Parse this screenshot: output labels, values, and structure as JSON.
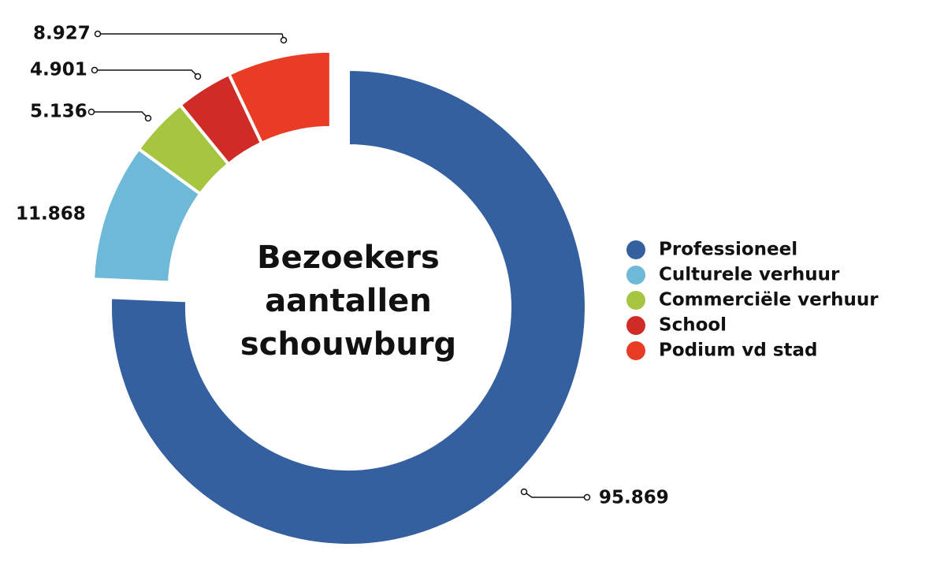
{
  "chart_data": {
    "type": "donut",
    "title": "Bezoekers aantallen schouwburg",
    "categories": [
      "Professioneel",
      "Culturele verhuur",
      "Commerciële verhuur",
      "School",
      "Podium vd stad"
    ],
    "values": [
      95869,
      11868,
      5136,
      4901,
      8927
    ],
    "value_labels": [
      "95.869",
      "11.868",
      "5.136",
      "4.901",
      "8.927"
    ],
    "colors": [
      "#3460a0",
      "#6db9d7",
      "#a7c640",
      "#cf2b27",
      "#e83d24"
    ],
    "legend": "right"
  }
}
